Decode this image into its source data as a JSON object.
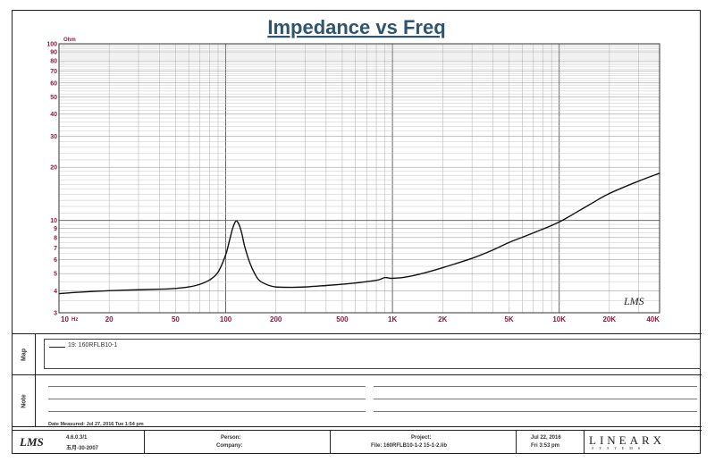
{
  "chart_data": {
    "type": "line",
    "title": "Impedance vs Freq",
    "ylabel_unit": "Ohm",
    "xscale": "log",
    "yscale": "log",
    "xlim": [
      10,
      40000
    ],
    "ylim": [
      3,
      100
    ],
    "x_ticks": [
      {
        "v": 10,
        "label": "10"
      },
      {
        "v": 20,
        "label": "20"
      },
      {
        "v": 50,
        "label": "50"
      },
      {
        "v": 100,
        "label": "100"
      },
      {
        "v": 200,
        "label": "200"
      },
      {
        "v": 500,
        "label": "500"
      },
      {
        "v": 1000,
        "label": "1K"
      },
      {
        "v": 2000,
        "label": "2K"
      },
      {
        "v": 5000,
        "label": "5K"
      },
      {
        "v": 10000,
        "label": "10K"
      },
      {
        "v": 20000,
        "label": "20K"
      },
      {
        "v": 40000,
        "label": "40K"
      }
    ],
    "x_unit_label": "Hz",
    "y_ticks": [
      {
        "v": 3,
        "label": "3"
      },
      {
        "v": 4,
        "label": "4"
      },
      {
        "v": 5,
        "label": "5"
      },
      {
        "v": 6,
        "label": "6"
      },
      {
        "v": 7,
        "label": "7"
      },
      {
        "v": 8,
        "label": "8"
      },
      {
        "v": 9,
        "label": "9"
      },
      {
        "v": 10,
        "label": "10"
      },
      {
        "v": 20,
        "label": "20"
      },
      {
        "v": 30,
        "label": "30"
      },
      {
        "v": 40,
        "label": "40"
      },
      {
        "v": 50,
        "label": "50"
      },
      {
        "v": 60,
        "label": "60"
      },
      {
        "v": 70,
        "label": "70"
      },
      {
        "v": 80,
        "label": "80"
      },
      {
        "v": 90,
        "label": "90"
      },
      {
        "v": 100,
        "label": "100"
      }
    ],
    "grid": true,
    "series": [
      {
        "name": "19: 160RFLB10-1",
        "x": [
          10,
          12,
          15,
          20,
          30,
          40,
          50,
          60,
          70,
          80,
          90,
          100,
          105,
          110,
          115,
          120,
          125,
          130,
          140,
          150,
          160,
          180,
          200,
          250,
          300,
          400,
          500,
          600,
          700,
          800,
          850,
          900,
          950,
          1000,
          1200,
          1500,
          2000,
          3000,
          4000,
          5000,
          7000,
          10000,
          15000,
          20000,
          30000,
          40000
        ],
        "y": [
          3.85,
          3.9,
          3.95,
          4.0,
          4.05,
          4.08,
          4.12,
          4.2,
          4.35,
          4.6,
          5.1,
          6.4,
          7.6,
          9.0,
          9.9,
          9.5,
          8.4,
          7.1,
          5.7,
          4.95,
          4.55,
          4.3,
          4.2,
          4.18,
          4.2,
          4.28,
          4.35,
          4.42,
          4.5,
          4.58,
          4.65,
          4.75,
          4.72,
          4.7,
          4.78,
          5.0,
          5.4,
          6.1,
          6.8,
          7.5,
          8.5,
          9.8,
          12.2,
          14.2,
          16.7,
          18.5
        ]
      }
    ]
  },
  "logo_text": "LMS",
  "panels": {
    "map_label": "Map",
    "note_label": "Note",
    "legend_entry": "19: 160RFLB10-1",
    "date_measured": "Date Measured: Jul 27, 2016  Tue  1:54 pm"
  },
  "footer": {
    "logo": "LMS",
    "version": "4.6.0.3/1",
    "version_date": "五月-30-2007",
    "person_label": "Person:",
    "company_label": "Company:",
    "project_label": "Project:",
    "file_label": "File: 160RFLB10-1-2 15-1-2.lib",
    "date": "Jul 22, 2016",
    "time": "Fri  3:53 pm",
    "brand": "LINEARX",
    "brand_sub": "SYSTEMS"
  }
}
